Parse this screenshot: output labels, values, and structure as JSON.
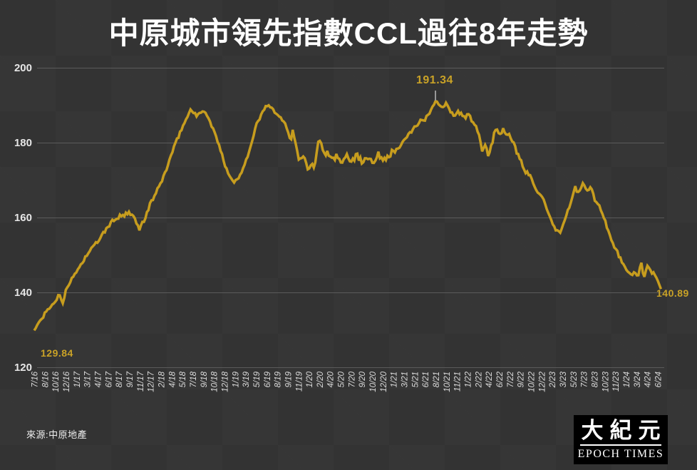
{
  "page": {
    "background_color": "#333333",
    "title": "中原城市領先指數CCL過往8年走勢",
    "source_label": "來源:中原地產",
    "logo": {
      "cjk": "大紀元",
      "en": "EPOCH TIMES"
    }
  },
  "chart_data": {
    "type": "line",
    "title": "中原城市領先指數CCL過往8年走勢",
    "series_name": "CCL",
    "line_color": "#C79D1E",
    "grid_color": "#5B5B5B",
    "axis_text_color": "#DCDCDC",
    "annotation_color": "#C9A227",
    "grid_on": true,
    "legend": "none",
    "ylim": [
      120,
      200
    ],
    "y_ticks": [
      200,
      180,
      160,
      140,
      120
    ],
    "x_labels": [
      "7/16",
      "8/16",
      "10/16",
      "12/16",
      "1/17",
      "3/17",
      "4/17",
      "6/17",
      "8/17",
      "9/17",
      "11/17",
      "12/17",
      "2/18",
      "4/18",
      "5/18",
      "7/18",
      "9/18",
      "10/18",
      "12/18",
      "1/19",
      "3/19",
      "5/19",
      "6/19",
      "8/19",
      "9/19",
      "11/19",
      "1/20",
      "2/20",
      "4/20",
      "5/20",
      "7/20",
      "9/20",
      "10/20",
      "12/20",
      "1/21",
      "3/21",
      "5/21",
      "6/21",
      "8/21",
      "10/21",
      "11/21",
      "1/22",
      "2/22",
      "4/22",
      "6/22",
      "7/22",
      "9/22",
      "10/22",
      "12/22",
      "2/23",
      "3/23",
      "5/23",
      "7/23",
      "8/23",
      "10/23",
      "11/23",
      "1/24",
      "3/24",
      "4/24",
      "6/24"
    ],
    "annotations": {
      "start": {
        "text": "129.84",
        "x_label": "7/16",
        "value": 129.84
      },
      "peak": {
        "text": "191.34",
        "x_label": "8/21",
        "value": 191.34
      },
      "end": {
        "text": "140.89",
        "x_label": "6/24",
        "value": 140.89
      }
    },
    "anchors": [
      [
        0,
        129.84
      ],
      [
        0.5,
        132.2
      ],
      [
        1,
        134.2
      ],
      [
        1.5,
        136.1
      ],
      [
        2,
        137.6
      ],
      [
        2.4,
        139.6
      ],
      [
        2.7,
        137.0
      ],
      [
        3,
        141.0
      ],
      [
        3.5,
        143.2
      ],
      [
        4,
        145.6
      ],
      [
        4.5,
        147.8
      ],
      [
        5,
        150.1
      ],
      [
        5.5,
        151.9
      ],
      [
        6,
        153.6
      ],
      [
        6.5,
        155.6
      ],
      [
        7,
        157.6
      ],
      [
        7.6,
        159.7
      ],
      [
        8,
        160.1
      ],
      [
        8.5,
        160.6
      ],
      [
        9,
        161.0
      ],
      [
        9.5,
        159.9
      ],
      [
        9.9,
        156.9
      ],
      [
        10.4,
        159.2
      ],
      [
        11,
        163.8
      ],
      [
        11.5,
        166.4
      ],
      [
        12,
        169.4
      ],
      [
        12.5,
        172.8
      ],
      [
        13,
        177.0
      ],
      [
        13.5,
        180.6
      ],
      [
        14,
        184.1
      ],
      [
        14.4,
        186.3
      ],
      [
        14.8,
        188.8
      ],
      [
        15.1,
        188.3
      ],
      [
        15.4,
        186.9
      ],
      [
        15.8,
        188.2
      ],
      [
        16.1,
        188.7
      ],
      [
        16.5,
        186.3
      ],
      [
        17,
        183.1
      ],
      [
        17.5,
        179.2
      ],
      [
        18,
        174.4
      ],
      [
        18.5,
        171.2
      ],
      [
        18.9,
        169.4
      ],
      [
        19.4,
        170.7
      ],
      [
        20,
        175.1
      ],
      [
        20.5,
        179.0
      ],
      [
        21,
        184.6
      ],
      [
        21.6,
        188.1
      ],
      [
        22.1,
        190.4
      ],
      [
        22.5,
        189.0
      ],
      [
        23,
        187.1
      ],
      [
        23.5,
        186.3
      ],
      [
        24,
        183.5
      ],
      [
        24.3,
        180.9
      ],
      [
        24.5,
        182.9
      ],
      [
        25.1,
        175.0
      ],
      [
        25.4,
        177.0
      ],
      [
        25.9,
        173.0
      ],
      [
        26.2,
        175.1
      ],
      [
        26.5,
        173.9
      ],
      [
        26.9,
        181.2
      ],
      [
        27.3,
        178.2
      ],
      [
        27.8,
        176.9
      ],
      [
        28.2,
        174.9
      ],
      [
        28.6,
        176.8
      ],
      [
        29,
        174.7
      ],
      [
        29.5,
        177.2
      ],
      [
        30,
        175.1
      ],
      [
        30.5,
        176.8
      ],
      [
        31,
        174.7
      ],
      [
        31.5,
        176.8
      ],
      [
        32,
        174.9
      ],
      [
        32.6,
        176.8
      ],
      [
        33,
        175.3
      ],
      [
        33.5,
        176.9
      ],
      [
        34,
        177.4
      ],
      [
        34.6,
        179.0
      ],
      [
        35,
        180.4
      ],
      [
        35.5,
        182.3
      ],
      [
        36,
        184.2
      ],
      [
        36.5,
        185.7
      ],
      [
        37,
        186.1
      ],
      [
        37.5,
        188.7
      ],
      [
        38.05,
        191.34
      ],
      [
        38.5,
        189.3
      ],
      [
        39,
        190.3
      ],
      [
        39.5,
        188.0
      ],
      [
        39.9,
        187.0
      ],
      [
        40.2,
        188.3
      ],
      [
        40.6,
        186.4
      ],
      [
        41,
        187.5
      ],
      [
        41.4,
        186.0
      ],
      [
        41.9,
        183.5
      ],
      [
        42.4,
        177.9
      ],
      [
        42.7,
        179.4
      ],
      [
        43,
        176.1
      ],
      [
        43.3,
        180.1
      ],
      [
        43.7,
        183.5
      ],
      [
        44,
        182.4
      ],
      [
        44.4,
        183.7
      ],
      [
        44.8,
        182.5
      ],
      [
        45.3,
        179.9
      ],
      [
        46,
        175.1
      ],
      [
        46.5,
        172.4
      ],
      [
        47.1,
        170.4
      ],
      [
        47.7,
        166.6
      ],
      [
        48.2,
        164.5
      ],
      [
        48.7,
        160.4
      ],
      [
        49.2,
        157.2
      ],
      [
        49.8,
        155.9
      ],
      [
        50.2,
        159.4
      ],
      [
        50.6,
        162.7
      ],
      [
        50.9,
        165.1
      ],
      [
        51.2,
        168.2
      ],
      [
        51.5,
        166.3
      ],
      [
        51.9,
        169.2
      ],
      [
        52.3,
        167.1
      ],
      [
        52.7,
        168.0
      ],
      [
        53.1,
        164.4
      ],
      [
        53.5,
        162.9
      ],
      [
        53.9,
        160.2
      ],
      [
        54.3,
        156.6
      ],
      [
        54.7,
        153.1
      ],
      [
        55.1,
        151.2
      ],
      [
        55.6,
        148.1
      ],
      [
        56,
        145.9
      ],
      [
        56.4,
        144.6
      ],
      [
        56.8,
        145.3
      ],
      [
        57.1,
        144.2
      ],
      [
        57.45,
        148.3
      ],
      [
        57.7,
        143.3
      ],
      [
        58,
        147.0
      ],
      [
        58.3,
        145.7
      ],
      [
        58.6,
        144.9
      ],
      [
        58.9,
        143.9
      ],
      [
        59.1,
        142.5
      ],
      [
        59.3,
        140.89
      ]
    ]
  }
}
